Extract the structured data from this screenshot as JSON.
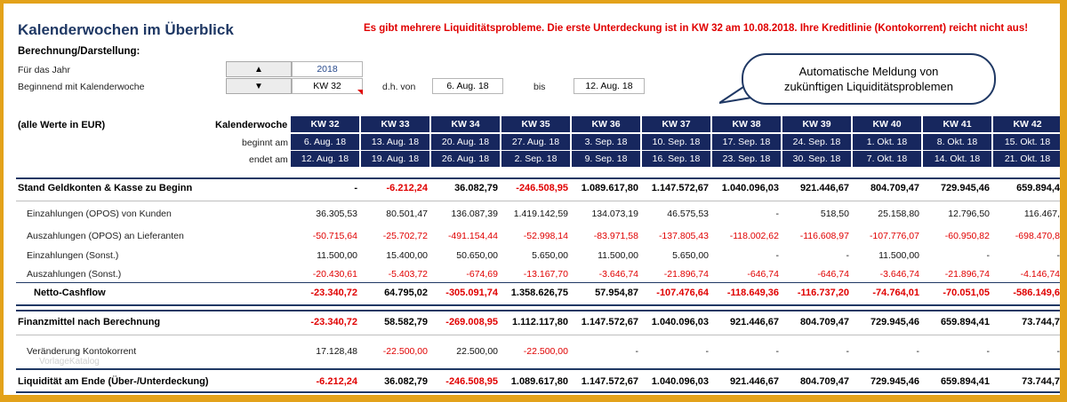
{
  "title": "Kalenderwochen im Überblick",
  "warning": "Es gibt mehrere Liquiditätsprobleme. Die erste Unterdeckung ist in KW 32 am 10.08.2018. Ihre Kreditlinie (Kontokorrent) reicht nicht aus!",
  "subtitle": "Berechnung/Darstellung:",
  "controls": {
    "year_label": "Für das Jahr",
    "week_label": "Beginnend mit Kalenderwoche",
    "year_value": "2018",
    "week_value": "KW 32",
    "from_label": "d.h. von",
    "from_value": "6. Aug. 18",
    "to_label": "bis",
    "to_value": "12. Aug. 18",
    "up_icon": "triangle-up-icon",
    "down_icon": "triangle-down-icon"
  },
  "callout": {
    "line1": "Automatische Meldung von",
    "line2": "zukünftigen Liquiditätsproblemen"
  },
  "header": {
    "currency_note": "(alle Werte in EUR)",
    "week_label": "Kalenderwoche",
    "start_label": "beginnt am",
    "end_label": "endet am"
  },
  "weeks": [
    {
      "kw": "KW 32",
      "start": "6. Aug. 18",
      "end": "12. Aug. 18"
    },
    {
      "kw": "KW 33",
      "start": "13. Aug. 18",
      "end": "19. Aug. 18"
    },
    {
      "kw": "KW 34",
      "start": "20. Aug. 18",
      "end": "26. Aug. 18"
    },
    {
      "kw": "KW 35",
      "start": "27. Aug. 18",
      "end": "2. Sep. 18"
    },
    {
      "kw": "KW 36",
      "start": "3. Sep. 18",
      "end": "9. Sep. 18"
    },
    {
      "kw": "KW 37",
      "start": "10. Sep. 18",
      "end": "16. Sep. 18"
    },
    {
      "kw": "KW 38",
      "start": "17. Sep. 18",
      "end": "23. Sep. 18"
    },
    {
      "kw": "KW 39",
      "start": "24. Sep. 18",
      "end": "30. Sep. 18"
    },
    {
      "kw": "KW 40",
      "start": "1. Okt. 18",
      "end": "7. Okt. 18"
    },
    {
      "kw": "KW 41",
      "start": "8. Okt. 18",
      "end": "14. Okt. 18"
    },
    {
      "kw": "KW 42",
      "start": "15. Okt. 18",
      "end": "21. Okt. 18"
    }
  ],
  "rows": [
    {
      "label": "Stand Geldkonten & Kasse zu Beginn",
      "bold": true,
      "values": [
        "-",
        "-6.212,24",
        "36.082,79",
        "-246.508,95",
        "1.089.617,80",
        "1.147.572,67",
        "1.040.096,03",
        "921.446,67",
        "804.709,47",
        "729.945,46",
        "659.894,4"
      ]
    },
    {
      "label": "Einzahlungen (OPOS) von Kunden",
      "bold": false,
      "values": [
        "36.305,53",
        "80.501,47",
        "136.087,39",
        "1.419.142,59",
        "134.073,19",
        "46.575,53",
        "-",
        "518,50",
        "25.158,80",
        "12.796,50",
        "116.467,"
      ]
    },
    {
      "label": "Auszahlungen (OPOS) an Lieferanten",
      "bold": false,
      "values": [
        "-50.715,64",
        "-25.702,72",
        "-491.154,44",
        "-52.998,14",
        "-83.971,58",
        "-137.805,43",
        "-118.002,62",
        "-116.608,97",
        "-107.776,07",
        "-60.950,82",
        "-698.470,8"
      ]
    },
    {
      "label": "Einzahlungen (Sonst.)",
      "bold": false,
      "values": [
        "11.500,00",
        "15.400,00",
        "50.650,00",
        "5.650,00",
        "11.500,00",
        "5.650,00",
        "-",
        "-",
        "11.500,00",
        "-",
        "-"
      ]
    },
    {
      "label": "Auszahlungen (Sonst.)",
      "bold": false,
      "values": [
        "-20.430,61",
        "-5.403,72",
        "-674,69",
        "-13.167,70",
        "-3.646,74",
        "-21.896,74",
        "-646,74",
        "-646,74",
        "-3.646,74",
        "-21.896,74",
        "-4.146,74"
      ]
    },
    {
      "label": "Netto-Cashflow",
      "bold": true,
      "values": [
        "-23.340,72",
        "64.795,02",
        "-305.091,74",
        "1.358.626,75",
        "57.954,87",
        "-107.476,64",
        "-118.649,36",
        "-116.737,20",
        "-74.764,01",
        "-70.051,05",
        "-586.149,6"
      ]
    },
    {
      "label": "Finanzmittel nach Berechnung",
      "bold": true,
      "values": [
        "-23.340,72",
        "58.582,79",
        "-269.008,95",
        "1.112.117,80",
        "1.147.572,67",
        "1.040.096,03",
        "921.446,67",
        "804.709,47",
        "729.945,46",
        "659.894,41",
        "73.744,7"
      ]
    },
    {
      "label": "Veränderung Kontokorrent",
      "bold": false,
      "values": [
        "17.128,48",
        "-22.500,00",
        "22.500,00",
        "-22.500,00",
        "-",
        "-",
        "-",
        "-",
        "-",
        "-",
        "-"
      ]
    },
    {
      "label": "Liquidität am Ende (Über-/Unterdeckung)",
      "bold": true,
      "values": [
        "-6.212,24",
        "36.082,79",
        "-246.508,95",
        "1.089.617,80",
        "1.147.572,67",
        "1.040.096,03",
        "921.446,67",
        "804.709,47",
        "729.945,46",
        "659.894,41",
        "73.744,7"
      ]
    }
  ],
  "watermark": "VorlageKatalog",
  "colors": {
    "accent": "#17275e",
    "negative": "#e00000",
    "frame": "#e3a21a",
    "title": "#1f3864"
  }
}
